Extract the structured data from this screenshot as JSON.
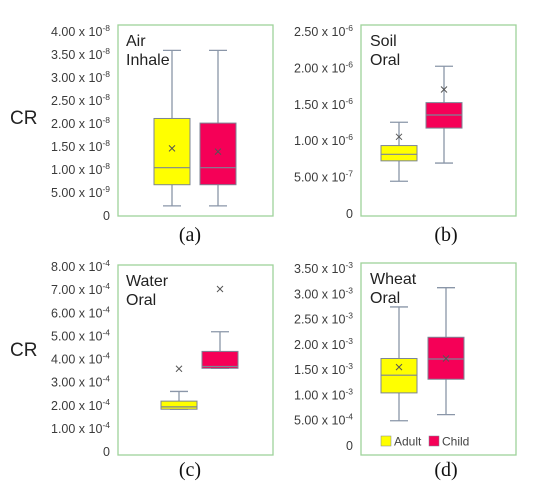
{
  "y_axis_label": "CR",
  "legend": [
    {
      "label": "Adult",
      "color": "#ffff00"
    },
    {
      "label": "Child",
      "color": "#f50057"
    }
  ],
  "colors": {
    "frame": "#9fd39a",
    "whisker": "#8a96a8",
    "edge": "#7c8595"
  },
  "chart_data": [
    {
      "type": "boxplot",
      "panel_label": "(a)",
      "title_lines": [
        "Air",
        "Inhale"
      ],
      "ylim": [
        0,
        4e-08
      ],
      "yticks": [
        {
          "value": 4e-08,
          "mantissa": "4.00 x 10",
          "exp": "-8"
        },
        {
          "value": 3.5e-08,
          "mantissa": "3.50 x 10",
          "exp": "-8"
        },
        {
          "value": 3e-08,
          "mantissa": "3.00 x 10",
          "exp": "-8"
        },
        {
          "value": 2.5e-08,
          "mantissa": "2.50 x 10",
          "exp": "-8"
        },
        {
          "value": 2e-08,
          "mantissa": "2.00 x 10",
          "exp": "-8"
        },
        {
          "value": 1.5e-08,
          "mantissa": "1.50 x 10",
          "exp": "-8"
        },
        {
          "value": 1e-08,
          "mantissa": "1.00 x 10",
          "exp": "-8"
        },
        {
          "value": 5e-09,
          "mantissa": "5.00 x 10",
          "exp": "-9"
        },
        {
          "value": 0,
          "mantissa": "0",
          "exp": ""
        }
      ],
      "series": [
        {
          "name": "Adult",
          "min": 2.2e-09,
          "q1": 6.8e-09,
          "median": 1.05e-08,
          "q3": 2.12e-08,
          "max": 3.6e-08,
          "mean": 1.47e-08
        },
        {
          "name": "Child",
          "min": 2.2e-09,
          "q1": 6.8e-09,
          "median": 1.05e-08,
          "q3": 2.02e-08,
          "max": 3.6e-08,
          "mean": 1.4e-08
        }
      ]
    },
    {
      "type": "boxplot",
      "panel_label": "(b)",
      "title_lines": [
        "Soil",
        "Oral"
      ],
      "ylim": [
        0,
        2.5e-06
      ],
      "yticks": [
        {
          "value": 2.5e-06,
          "mantissa": "2.50 x 10",
          "exp": "-6"
        },
        {
          "value": 2e-06,
          "mantissa": "2.00 x 10",
          "exp": "-6"
        },
        {
          "value": 1.5e-06,
          "mantissa": "1.50 x 10",
          "exp": "-6"
        },
        {
          "value": 1e-06,
          "mantissa": "1.00 x 10",
          "exp": "-6"
        },
        {
          "value": 5e-07,
          "mantissa": "5.00 x 10",
          "exp": "-7"
        },
        {
          "value": 0,
          "mantissa": "0",
          "exp": ""
        }
      ],
      "series": [
        {
          "name": "Adult",
          "min": 4.5e-07,
          "q1": 7.3e-07,
          "median": 8.2e-07,
          "q3": 9.4e-07,
          "max": 1.26e-06,
          "mean": 1.06e-06
        },
        {
          "name": "Child",
          "min": 7e-07,
          "q1": 1.18e-06,
          "median": 1.36e-06,
          "q3": 1.53e-06,
          "max": 2.03e-06,
          "mean": 1.71e-06
        }
      ]
    },
    {
      "type": "boxplot",
      "panel_label": "(c)",
      "title_lines": [
        "Water",
        "Oral"
      ],
      "ylim": [
        0,
        0.0008
      ],
      "yticks": [
        {
          "value": 0.0008,
          "mantissa": "8.00 x 10",
          "exp": "-4"
        },
        {
          "value": 0.0007,
          "mantissa": "7.00 x 10",
          "exp": "-4"
        },
        {
          "value": 0.0006,
          "mantissa": "6.00 x 10",
          "exp": "-4"
        },
        {
          "value": 0.0005,
          "mantissa": "5.00 x 10",
          "exp": "-4"
        },
        {
          "value": 0.0004,
          "mantissa": "4.00 x 10",
          "exp": "-4"
        },
        {
          "value": 0.0003,
          "mantissa": "3.00 x 10",
          "exp": "-4"
        },
        {
          "value": 0.0002,
          "mantissa": "2.00 x 10",
          "exp": "-4"
        },
        {
          "value": 0.0001,
          "mantissa": "1.00 x 10",
          "exp": "-4"
        },
        {
          "value": 0,
          "mantissa": "0",
          "exp": ""
        }
      ],
      "series": [
        {
          "name": "Adult",
          "min": 0.000185,
          "q1": 0.000185,
          "median": 0.000195,
          "q3": 0.00022,
          "max": 0.000262,
          "mean": 0.00036
        },
        {
          "name": "Child",
          "min": 0.000362,
          "q1": 0.000362,
          "median": 0.00037,
          "q3": 0.000435,
          "max": 0.00052,
          "mean": 0.000705
        }
      ]
    },
    {
      "type": "boxplot",
      "panel_label": "(d)",
      "title_lines": [
        "Wheat",
        "Oral"
      ],
      "ylim": [
        0,
        0.0035
      ],
      "yticks": [
        {
          "value": 0.0035,
          "mantissa": "3.50 x 10",
          "exp": "-3"
        },
        {
          "value": 0.003,
          "mantissa": "3.00 x 10",
          "exp": "-3"
        },
        {
          "value": 0.0025,
          "mantissa": "2.50 x 10",
          "exp": "-3"
        },
        {
          "value": 0.002,
          "mantissa": "2.00 x 10",
          "exp": "-3"
        },
        {
          "value": 0.0015,
          "mantissa": "1.50 x 10",
          "exp": "-3"
        },
        {
          "value": 0.001,
          "mantissa": "1.00 x 10",
          "exp": "-3"
        },
        {
          "value": 0.0005,
          "mantissa": "5.00 x 10",
          "exp": "-4"
        },
        {
          "value": 0,
          "mantissa": "0",
          "exp": ""
        }
      ],
      "series": [
        {
          "name": "Adult",
          "min": 0.0005,
          "q1": 0.00105,
          "median": 0.0014,
          "q3": 0.00173,
          "max": 0.00275,
          "mean": 0.00156
        },
        {
          "name": "Child",
          "min": 0.00062,
          "q1": 0.00132,
          "median": 0.00172,
          "q3": 0.00215,
          "max": 0.00313,
          "mean": 0.00173
        }
      ]
    }
  ]
}
